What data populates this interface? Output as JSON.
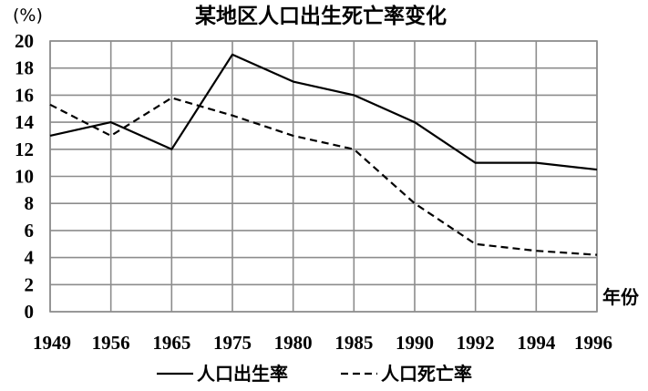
{
  "chart_data": {
    "type": "line",
    "title": "某地区人口出生死亡率变化",
    "unit": "(%)",
    "xlabel": "年份",
    "ylabel": "",
    "categories": [
      "1949",
      "1956",
      "1965",
      "1975",
      "1980",
      "1985",
      "1990",
      "1992",
      "1994",
      "1996"
    ],
    "ylim": [
      0,
      20
    ],
    "yticks": [
      0,
      2,
      4,
      6,
      8,
      10,
      12,
      14,
      16,
      18,
      20
    ],
    "grid": true,
    "legend_position": "bottom",
    "series": [
      {
        "name": "人口出生率",
        "dash": "solid",
        "color": "#000000",
        "values": [
          13,
          14,
          12,
          19,
          17,
          16,
          14,
          11,
          11,
          10.5
        ]
      },
      {
        "name": "人口死亡率",
        "dash": "dashed",
        "color": "#000000",
        "values": [
          15.3,
          13,
          15.8,
          14.5,
          13,
          12,
          8,
          5,
          4.5,
          4.2
        ]
      }
    ]
  }
}
